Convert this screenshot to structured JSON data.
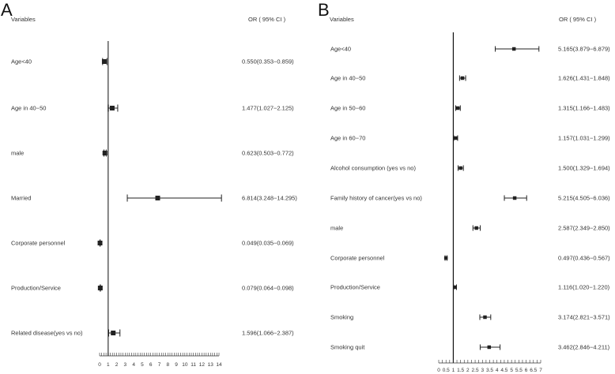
{
  "panels": [
    {
      "letter": "A",
      "header_variables": "Variables",
      "header_or": "OR ( 95% CI )",
      "rows": [
        {
          "label": "Age<40",
          "ci_text": "0.550(0.353−0.859)"
        },
        {
          "label": "Age in 40−50",
          "ci_text": "1.477(1.027−2.125)"
        },
        {
          "label": "male",
          "ci_text": "0.623(0.503−0.772)"
        },
        {
          "label": "Married",
          "ci_text": "6.814(3.248−14.295)"
        },
        {
          "label": "Corporate personnel",
          "ci_text": "0.049(0.035−0.069)"
        },
        {
          "label": "Production/Service",
          "ci_text": "0.079(0.064−0.098)"
        },
        {
          "label": "Related disease(yes vs no)",
          "ci_text": "1.596(1.066−2.387)"
        }
      ],
      "axis_ticks": [
        "0",
        "1",
        "2",
        "3",
        "4",
        "5",
        "6",
        "7",
        "8",
        "9",
        "10",
        "11",
        "12",
        "13",
        "14"
      ]
    },
    {
      "letter": "B",
      "header_variables": "Variables",
      "header_or": "OR ( 95% CI )",
      "rows": [
        {
          "label": "Age<40",
          "ci_text": "5.165(3.879−6.879)"
        },
        {
          "label": "Age in 40−50",
          "ci_text": "1.626(1.431−1.848)"
        },
        {
          "label": "Age in 50−60",
          "ci_text": "1.315(1.166−1.483)"
        },
        {
          "label": "Age in 60−70",
          "ci_text": "1.157(1.031−1.299)"
        },
        {
          "label": "Alcohol consumption (yes vs no)",
          "ci_text": "1.500(1.329−1.694)"
        },
        {
          "label": "Family history of cancer(yes vs no)",
          "ci_text": "5.215(4.505−6.036)"
        },
        {
          "label": "male",
          "ci_text": "2.587(2.349−2.850)"
        },
        {
          "label": "Corporate personnel",
          "ci_text": "0.497(0.436−0.567)"
        },
        {
          "label": "Production/Service",
          "ci_text": "1.116(1.020−1.220)"
        },
        {
          "label": "Smoking",
          "ci_text": "3.174(2.821−3.571)"
        },
        {
          "label": "Smoking quit",
          "ci_text": "3.462(2.846−4.211)"
        }
      ],
      "axis_ticks": [
        "0",
        "0.5",
        "1",
        "1.5",
        "2",
        "2.5",
        "3",
        "3.5",
        "4",
        "4.5",
        "5",
        "5.5",
        "6",
        "6.5",
        "7"
      ]
    }
  ],
  "chart_data": [
    {
      "type": "forest",
      "title": "A",
      "xlabel": "",
      "ylabel": "Variables",
      "reference_line": 1,
      "xlim": [
        0,
        14
      ],
      "x_ticks": [
        0,
        1,
        2,
        3,
        4,
        5,
        6,
        7,
        8,
        9,
        10,
        11,
        12,
        13,
        14
      ],
      "columns": [
        "Variables",
        "OR ( 95% CI )"
      ],
      "categories": [
        "Age<40",
        "Age in 40-50",
        "male",
        "Married",
        "Corporate personnel",
        "Production/Service",
        "Related disease(yes vs no)"
      ],
      "or": [
        0.55,
        1.477,
        0.623,
        6.814,
        0.049,
        0.079,
        1.596
      ],
      "lower": [
        0.353,
        1.027,
        0.503,
        3.248,
        0.035,
        0.064,
        1.066
      ],
      "upper": [
        0.859,
        2.125,
        0.772,
        14.295,
        0.069,
        0.098,
        2.387
      ]
    },
    {
      "type": "forest",
      "title": "B",
      "xlabel": "",
      "ylabel": "Variables",
      "reference_line": 1,
      "xlim": [
        0,
        7
      ],
      "x_ticks": [
        0,
        0.5,
        1,
        1.5,
        2,
        2.5,
        3,
        3.5,
        4,
        4.5,
        5,
        5.5,
        6,
        6.5,
        7
      ],
      "columns": [
        "Variables",
        "OR ( 95% CI )"
      ],
      "categories": [
        "Age<40",
        "Age in 40-50",
        "Age in 50-60",
        "Age in 60-70",
        "Alcohol consumption (yes vs no)",
        "Family history of cancer(yes vs no)",
        "male",
        "Corporate personnel",
        "Production/Service",
        "Smoking",
        "Smoking quit"
      ],
      "or": [
        5.165,
        1.626,
        1.315,
        1.157,
        1.5,
        5.215,
        2.587,
        0.497,
        1.116,
        3.174,
        3.462
      ],
      "lower": [
        3.879,
        1.431,
        1.166,
        1.031,
        1.329,
        4.505,
        2.349,
        0.436,
        1.02,
        2.821,
        2.846
      ],
      "upper": [
        6.879,
        1.848,
        1.483,
        1.299,
        1.694,
        6.036,
        2.85,
        0.567,
        1.22,
        3.571,
        4.211
      ]
    }
  ]
}
